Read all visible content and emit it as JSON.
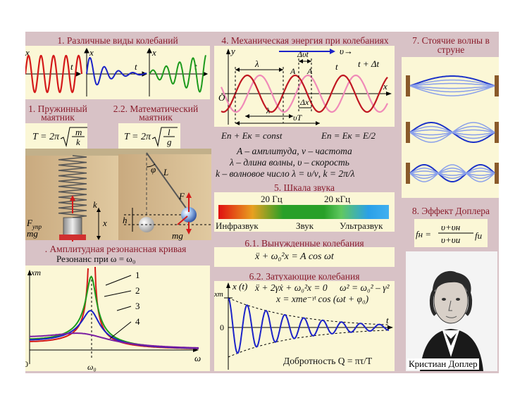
{
  "sections": {
    "s1": {
      "title": "1. Различные виды колебаний",
      "axis_x": "x",
      "axis_t": "t"
    },
    "s21": {
      "title": "1. Пружинный маятник",
      "formula_lhs": "T = 2π",
      "num": "m",
      "den": "k",
      "label_k": "k",
      "label_x": "x",
      "label_F": "F",
      "label_F_sub": "упр",
      "label_mg": "mg"
    },
    "s22": {
      "title": "2.2. Математический маятник",
      "formula_lhs": "T = 2π",
      "num": "l",
      "den": "g",
      "label_phi": "φ",
      "label_L": "L",
      "label_F": "F",
      "label_h": "h",
      "label_mg": "mg"
    },
    "s3": {
      "title": ". Амплитудная резонансная кривая",
      "subtitle": "Резонанс при ω = ω₀",
      "axis_y": "xm",
      "axis_x": "ω",
      "origin": "0",
      "omega0": "ω₀",
      "curve_labels": [
        "1",
        "2",
        "3",
        "4"
      ]
    },
    "s4": {
      "title": "4. Механическая энергия при колебаниях",
      "axis_y": "y",
      "axis_x": "x",
      "origin": "O",
      "velocity": "υ→",
      "labels": {
        "lambda": "λ",
        "dvt": "Δυt",
        "t": "t",
        "tdt": "t + Δt",
        "A1": "A",
        "A2": "A",
        "dx": "Δx",
        "lambda2": "λ",
        "vT": "υT"
      },
      "energy1": "Eп + Eк = const",
      "energy2": "Eп = Eк = E/2",
      "lines": [
        "A – амплитуда, ν – частота",
        "λ – длина волны, υ – скорость",
        "k – волновое число   λ = υ/ν, k = 2π/λ"
      ]
    },
    "s5": {
      "title": "5. Шкала звука",
      "hz": "20 Гц",
      "khz": "20 кГц",
      "infra": "Инфразвук",
      "sound": "Звук",
      "ultra": "Ультразвук"
    },
    "s61": {
      "title": "6.1. Вынужденные колебания",
      "equation": "ẍ + ω₀²x = A cos ωt"
    },
    "s62": {
      "title": "6.2. Затухающие колебания",
      "axis_y": "x (t)",
      "axis_xm": "xm",
      "axis_t": "t",
      "origin": "0",
      "eq1": "ẍ + 2γẋ + ω₀²x = 0",
      "eq2": "ω² = ω₀² – γ²",
      "eq3": "x = xme⁻ᵞᵗ cos (ωt + φ₀)",
      "quality": "Добротность Q = πτ/T"
    },
    "s7": {
      "title": "7. Стоячие волны в струне"
    },
    "s8": {
      "title": "8. Эффект Доплера",
      "formula_f": "fн =",
      "num": "υ+υн",
      "den": "υ+υи",
      "fi": "fи",
      "caption": "Кристиан Доплер"
    }
  },
  "colors": {
    "header": "#8a1d2c",
    "frame": "#d8c2c6",
    "panel": "#fbf7d6",
    "red": "#d41a1a",
    "blue": "#1c23c8",
    "green": "#1c9a1c",
    "purple": "#7b1fa2",
    "pink": "#f08ab8"
  },
  "chart_data": {
    "type": "line",
    "title": "Резонанс при ω = ω₀",
    "xlabel": "ω",
    "ylabel": "xm",
    "series": [
      {
        "name": "1",
        "description": "no damping, goes to infinity at ω₀"
      },
      {
        "name": "2",
        "peak": 1.0
      },
      {
        "name": "3",
        "peak": 0.62
      },
      {
        "name": "4",
        "peak": 0.18
      }
    ]
  }
}
